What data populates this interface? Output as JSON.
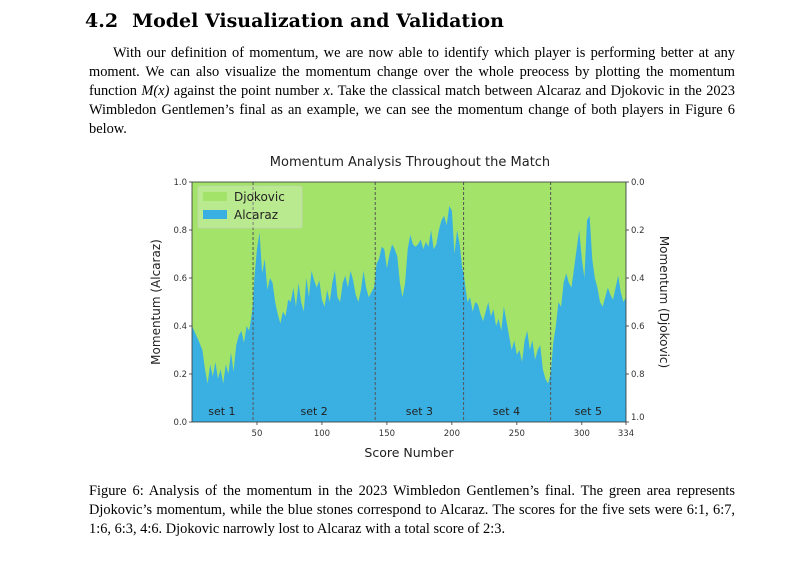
{
  "section": {
    "number": "4.2",
    "title": "Model Visualization and Validation"
  },
  "paragraph": {
    "text_before_math": "With our definition of momentum, we are now able to identify which player is performing better at any moment. We can also visualize the momentum change over the whole preocess by plotting the momentum function ",
    "math_function": "M(x)",
    "text_middle": " against the point number ",
    "math_var": "x",
    "text_after": ". Take the classical match between Alcaraz and Djokovic in the 2023 Wimbledon Gentlemen’s final as an example, we can see the momentum change of both players in Figure 6 below."
  },
  "caption": {
    "text": "Figure 6: Analysis of the momentum in the 2023 Wimbledon Gentlemen’s final. The green area represents Djokovic’s momentum, while the blue stones correspond to Alcaraz. The scores for the five sets were 6:1, 6:7, 1:6, 6:3, 4:6. Djokovic narrowly lost to Alcaraz with a total score of 2:3."
  },
  "chart_data": {
    "type": "area",
    "title": "Momentum Analysis Throughout the Match",
    "xlabel": "Score Number",
    "ylabel_left": "Momentum (Alcaraz)",
    "ylabel_right": "Momentum (Djokovic)",
    "xlim": [
      0,
      334
    ],
    "ylim": [
      0,
      1
    ],
    "x_ticks": [
      50,
      100,
      150,
      200,
      250,
      300,
      334
    ],
    "y_ticks_left": [
      "0.0",
      "0.2",
      "0.4",
      "0.6",
      "0.8",
      "1.0"
    ],
    "y_ticks_right": [
      "1.0",
      "0.8",
      "0.6",
      "0.4",
      "0.2",
      "0.0"
    ],
    "legend": [
      "Djokovic",
      "Alcaraz"
    ],
    "legend_position": "top-left",
    "colors": {
      "djokovic": "#a3e36a",
      "alcaraz": "#3ab0e2",
      "divider": "#555555"
    },
    "set_boundaries": [
      47,
      141,
      209,
      276
    ],
    "set_labels": [
      {
        "label": "set 1",
        "x": 23
      },
      {
        "label": "set 2",
        "x": 94
      },
      {
        "label": "set 3",
        "x": 175
      },
      {
        "label": "set 4",
        "x": 242
      },
      {
        "label": "set 5",
        "x": 305
      }
    ],
    "series": [
      {
        "name": "Alcaraz",
        "x": [
          0,
          5,
          8,
          10,
          12,
          14,
          16,
          18,
          20,
          22,
          24,
          26,
          28,
          30,
          32,
          34,
          36,
          38,
          40,
          42,
          44,
          46,
          47,
          48,
          50,
          52,
          54,
          56,
          58,
          60,
          62,
          64,
          66,
          68,
          70,
          72,
          74,
          76,
          78,
          80,
          82,
          84,
          86,
          88,
          90,
          92,
          94,
          96,
          98,
          100,
          102,
          104,
          106,
          108,
          110,
          112,
          114,
          116,
          118,
          120,
          122,
          124,
          126,
          128,
          130,
          132,
          134,
          136,
          138,
          140,
          141,
          142,
          144,
          146,
          148,
          150,
          152,
          154,
          156,
          158,
          160,
          162,
          164,
          166,
          168,
          170,
          172,
          174,
          176,
          178,
          180,
          182,
          184,
          186,
          188,
          190,
          192,
          194,
          196,
          198,
          200,
          202,
          204,
          206,
          208,
          209,
          210,
          212,
          214,
          216,
          218,
          220,
          222,
          224,
          226,
          228,
          230,
          232,
          234,
          236,
          238,
          240,
          242,
          244,
          246,
          248,
          250,
          252,
          254,
          256,
          258,
          260,
          262,
          264,
          266,
          268,
          270,
          272,
          274,
          276,
          277,
          278,
          280,
          282,
          284,
          286,
          288,
          290,
          292,
          294,
          296,
          298,
          300,
          302,
          304,
          306,
          308,
          310,
          312,
          314,
          316,
          318,
          320,
          322,
          324,
          326,
          328,
          330,
          332,
          334
        ],
        "values": [
          0.4,
          0.34,
          0.3,
          0.22,
          0.16,
          0.24,
          0.19,
          0.25,
          0.18,
          0.22,
          0.16,
          0.24,
          0.2,
          0.29,
          0.21,
          0.32,
          0.36,
          0.38,
          0.33,
          0.4,
          0.38,
          0.45,
          0.5,
          0.6,
          0.72,
          0.79,
          0.62,
          0.68,
          0.55,
          0.6,
          0.58,
          0.5,
          0.45,
          0.41,
          0.46,
          0.44,
          0.51,
          0.5,
          0.56,
          0.48,
          0.58,
          0.5,
          0.46,
          0.6,
          0.52,
          0.63,
          0.59,
          0.56,
          0.59,
          0.51,
          0.48,
          0.55,
          0.5,
          0.58,
          0.63,
          0.52,
          0.5,
          0.58,
          0.61,
          0.56,
          0.63,
          0.59,
          0.53,
          0.5,
          0.55,
          0.63,
          0.56,
          0.52,
          0.54,
          0.56,
          0.6,
          0.66,
          0.68,
          0.73,
          0.72,
          0.64,
          0.7,
          0.74,
          0.72,
          0.69,
          0.58,
          0.52,
          0.58,
          0.72,
          0.78,
          0.74,
          0.73,
          0.74,
          0.76,
          0.72,
          0.75,
          0.73,
          0.8,
          0.72,
          0.74,
          0.8,
          0.84,
          0.86,
          0.82,
          0.9,
          0.88,
          0.7,
          0.8,
          0.74,
          0.64,
          0.62,
          0.58,
          0.5,
          0.52,
          0.46,
          0.5,
          0.49,
          0.45,
          0.42,
          0.46,
          0.5,
          0.44,
          0.47,
          0.4,
          0.43,
          0.38,
          0.48,
          0.42,
          0.36,
          0.3,
          0.34,
          0.28,
          0.3,
          0.25,
          0.34,
          0.38,
          0.3,
          0.34,
          0.26,
          0.3,
          0.32,
          0.22,
          0.18,
          0.16,
          0.2,
          0.26,
          0.33,
          0.4,
          0.5,
          0.48,
          0.58,
          0.62,
          0.58,
          0.56,
          0.64,
          0.72,
          0.8,
          0.68,
          0.6,
          0.84,
          0.86,
          0.68,
          0.6,
          0.56,
          0.5,
          0.48,
          0.52,
          0.56,
          0.53,
          0.51,
          0.56,
          0.61,
          0.54,
          0.5,
          0.52
        ]
      }
    ]
  }
}
